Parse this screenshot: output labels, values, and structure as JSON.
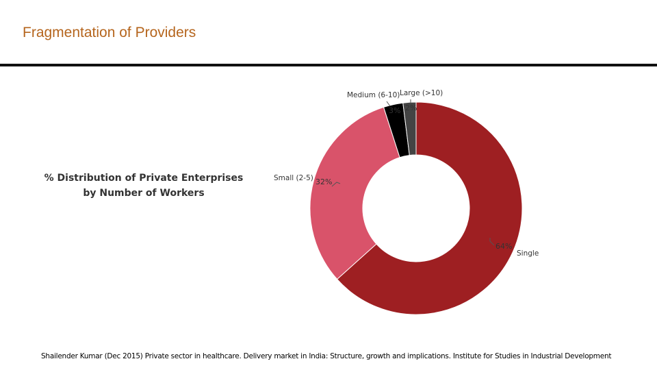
{
  "slide": {
    "title": "Fragmentation of Providers",
    "source": "Shailender Kumar (Dec 2015) Private sector in healthcare. Delivery market in India: Structure, growth and implications. Institute for Studies in Industrial Development"
  },
  "chart_data": {
    "type": "pie",
    "variant": "donut",
    "title": "% Distribution of Private Enterprises by Number of Workers",
    "slices": [
      {
        "label": "Single",
        "value": 64,
        "value_label": "64%",
        "color": "#9e1f22"
      },
      {
        "label": "Small (2-5)",
        "value": 32,
        "value_label": "32%",
        "color": "#d9536a"
      },
      {
        "label": "Medium (6-10)",
        "value": 3,
        "value_label": "3%",
        "color": "#000000"
      },
      {
        "label": "Large (>10)",
        "value": 2,
        "value_label": "2%",
        "color": "#444444"
      }
    ],
    "colors": {
      "title": "#b5651d",
      "rule": "#111111"
    }
  }
}
